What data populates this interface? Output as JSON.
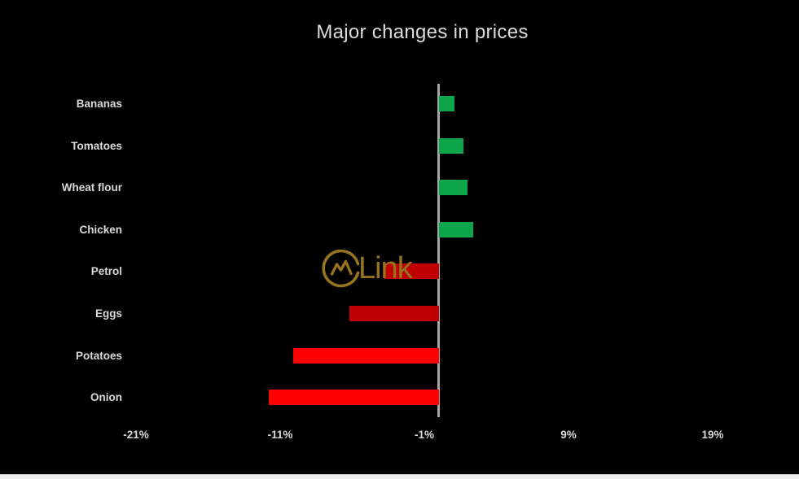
{
  "watermark": {
    "text": "Link",
    "logo": "mountain-trend-circle-icon"
  },
  "colors": {
    "background": "#000000",
    "positive": "#0EA64C",
    "negative_dark": "#C00000",
    "negative_bright": "#FE0000",
    "axis_line": "#A6A6A6",
    "label_text": "#D9D9D9",
    "title_text": "#DCDCDC",
    "watermark": "#96741F",
    "bottom_strip": "#EDEDED"
  },
  "chart_data": {
    "type": "bar",
    "orientation": "horizontal",
    "title": "Major changes in prices",
    "categories": [
      "Bananas",
      "Tomatoes",
      "Wheat flour",
      "Chicken",
      "Petrol",
      "Eggs",
      "Potatoes",
      "Onion"
    ],
    "values": [
      1.1,
      1.7,
      2.0,
      2.4,
      -3.8,
      -6.2,
      -10.1,
      -11.8
    ],
    "bar_colors": [
      "positive",
      "positive",
      "positive",
      "positive",
      "negative_dark",
      "negative_dark",
      "negative_bright",
      "negative_bright"
    ],
    "x_ticks": [
      "-21%",
      "-11%",
      "-1%",
      "9%",
      "19%"
    ],
    "x_tick_values": [
      -21,
      -11,
      -1,
      9,
      19
    ],
    "xlim": [
      -26,
      24
    ],
    "grid": false,
    "legend": false,
    "value_format": "percent",
    "baseline": 0
  }
}
